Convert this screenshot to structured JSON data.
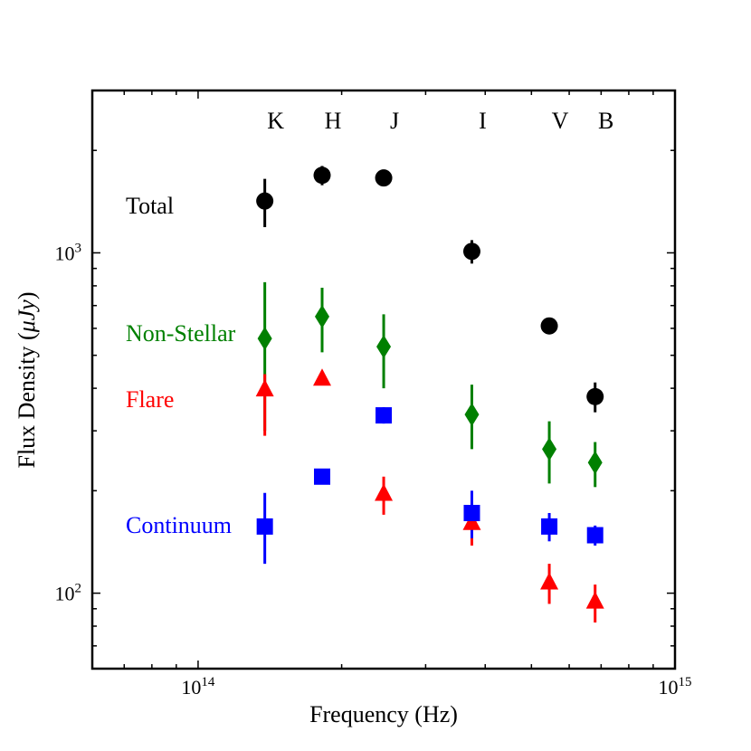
{
  "chart_data": {
    "type": "scatter",
    "xscale": "log",
    "yscale": "log",
    "xlim": [
      60000000000000,
      1000000000000000
    ],
    "ylim": [
      60,
      3000
    ],
    "xlabel": "Frequency (Hz)",
    "ylabel_text": "Flux Density (",
    "ylabel_math": "μJy",
    "ylabel_close": ")",
    "x_ticks": [
      {
        "value": 100000000000000,
        "base": "10",
        "exp": "14"
      },
      {
        "value": 1000000000000000,
        "base": "10",
        "exp": "15"
      }
    ],
    "y_ticks": [
      {
        "value": 100,
        "base": "10",
        "exp": "2"
      },
      {
        "value": 1000,
        "base": "10",
        "exp": "3"
      }
    ],
    "bands": [
      {
        "name": "K",
        "freq": 138000000000000
      },
      {
        "name": "H",
        "freq": 182000000000000
      },
      {
        "name": "J",
        "freq": 245000000000000
      },
      {
        "name": "I",
        "freq": 375000000000000
      },
      {
        "name": "V",
        "freq": 545000000000000
      },
      {
        "name": "B",
        "freq": 680000000000000
      }
    ],
    "series": [
      {
        "name": "Total",
        "color": "#000000",
        "marker": "circle",
        "points": [
          {
            "x": 138000000000000,
            "y": 1420,
            "lo": 1190,
            "hi": 1650
          },
          {
            "x": 182000000000000,
            "y": 1690,
            "lo": 1580,
            "hi": 1800
          },
          {
            "x": 245000000000000,
            "y": 1660,
            "lo": 1660,
            "hi": 1660
          },
          {
            "x": 375000000000000,
            "y": 1010,
            "lo": 930,
            "hi": 1090
          },
          {
            "x": 545000000000000,
            "y": 610,
            "lo": 590,
            "hi": 630
          },
          {
            "x": 680000000000000,
            "y": 378,
            "lo": 340,
            "hi": 416
          }
        ]
      },
      {
        "name": "Non-Stellar",
        "color": "#008000",
        "marker": "diamond",
        "points": [
          {
            "x": 138000000000000,
            "y": 560,
            "lo": 300,
            "hi": 820
          },
          {
            "x": 182000000000000,
            "y": 650,
            "lo": 510,
            "hi": 790
          },
          {
            "x": 245000000000000,
            "y": 530,
            "lo": 400,
            "hi": 660
          },
          {
            "x": 375000000000000,
            "y": 335,
            "lo": 265,
            "hi": 410
          },
          {
            "x": 545000000000000,
            "y": 265,
            "lo": 210,
            "hi": 320
          },
          {
            "x": 680000000000000,
            "y": 242,
            "lo": 205,
            "hi": 278
          }
        ]
      },
      {
        "name": "Flare",
        "color": "#ff0000",
        "marker": "triangle",
        "points": [
          {
            "x": 138000000000000,
            "y": 395,
            "lo": 290,
            "hi": 440
          },
          {
            "x": 182000000000000,
            "y": 425,
            "lo": 425,
            "hi": 425
          },
          {
            "x": 245000000000000,
            "y": 195,
            "lo": 170,
            "hi": 220
          },
          {
            "x": 375000000000000,
            "y": 160,
            "lo": 138,
            "hi": 180
          },
          {
            "x": 545000000000000,
            "y": 107,
            "lo": 93,
            "hi": 122
          },
          {
            "x": 680000000000000,
            "y": 94,
            "lo": 82,
            "hi": 106
          }
        ]
      },
      {
        "name": "Continuum",
        "color": "#0000ff",
        "marker": "square",
        "points": [
          {
            "x": 138000000000000,
            "y": 157,
            "lo": 122,
            "hi": 197
          },
          {
            "x": 182000000000000,
            "y": 220,
            "lo": 220,
            "hi": 220
          },
          {
            "x": 245000000000000,
            "y": 333,
            "lo": 315,
            "hi": 352
          },
          {
            "x": 375000000000000,
            "y": 172,
            "lo": 145,
            "hi": 200
          },
          {
            "x": 545000000000000,
            "y": 157,
            "lo": 142,
            "hi": 172
          },
          {
            "x": 680000000000000,
            "y": 148,
            "lo": 138,
            "hi": 158
          }
        ]
      }
    ]
  }
}
